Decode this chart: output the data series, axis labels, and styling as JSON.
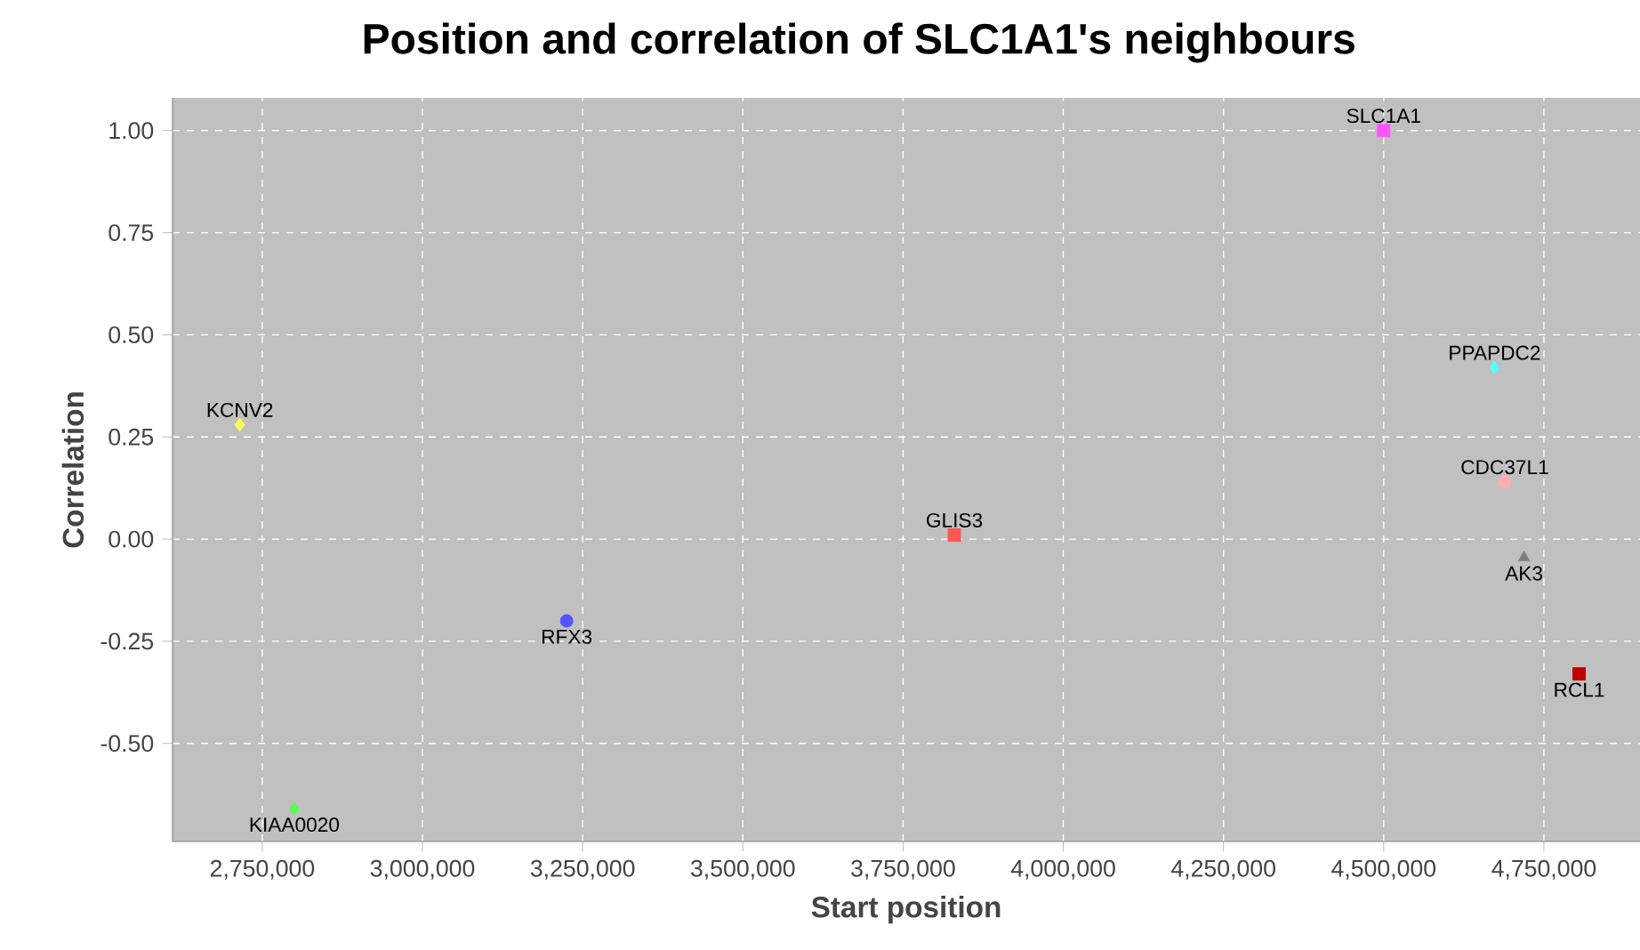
{
  "chart_data": {
    "type": "scatter",
    "title": "Position and correlation of SLC1A1's neighbours",
    "xlabel": "Start position",
    "ylabel": "Correlation",
    "grid": true,
    "xlim": [
      2610000,
      4900000
    ],
    "ylim": [
      -0.74,
      1.08
    ],
    "xticks": [
      {
        "value": 2750000,
        "label": "2,750,000"
      },
      {
        "value": 3000000,
        "label": "3,000,000"
      },
      {
        "value": 3250000,
        "label": "3,250,000"
      },
      {
        "value": 3500000,
        "label": "3,500,000"
      },
      {
        "value": 3750000,
        "label": "3,750,000"
      },
      {
        "value": 4000000,
        "label": "4,000,000"
      },
      {
        "value": 4250000,
        "label": "4,250,000"
      },
      {
        "value": 4500000,
        "label": "4,500,000"
      },
      {
        "value": 4750000,
        "label": "4,750,000"
      }
    ],
    "yticks": [
      {
        "value": -0.5,
        "label": "-0.50"
      },
      {
        "value": -0.25,
        "label": "-0.25"
      },
      {
        "value": 0,
        "label": "0.00"
      },
      {
        "value": 0.25,
        "label": "0.25"
      },
      {
        "value": 0.5,
        "label": "0.50"
      },
      {
        "value": 0.75,
        "label": "0.75"
      },
      {
        "value": 1,
        "label": "1.00"
      }
    ],
    "series": [
      {
        "name": "KCNV2",
        "color": "#ffff55",
        "marker": "diamond",
        "x": [
          2715000
        ],
        "values": [
          0.28
        ]
      },
      {
        "name": "KIAA0020",
        "color": "#55ff55",
        "marker": "diamond",
        "x": [
          2800000
        ],
        "values": [
          -0.66
        ]
      },
      {
        "name": "RFX3",
        "color": "#5555ff",
        "marker": "circle",
        "x": [
          3225000
        ],
        "values": [
          -0.2
        ]
      },
      {
        "name": "GLIS3",
        "color": "#ff5555",
        "marker": "square",
        "x": [
          3830000
        ],
        "values": [
          0.01
        ]
      },
      {
        "name": "SLC1A1",
        "color": "#ff55ff",
        "marker": "square",
        "x": [
          4500000
        ],
        "values": [
          1.0
        ]
      },
      {
        "name": "PPAPDC2",
        "color": "#55ffff",
        "marker": "diamond",
        "x": [
          4673000
        ],
        "values": [
          0.42
        ]
      },
      {
        "name": "CDC37L1",
        "color": "#ffafaf",
        "marker": "circle",
        "x": [
          4689000
        ],
        "values": [
          0.14
        ]
      },
      {
        "name": "AK3",
        "color": "#808080",
        "marker": "triangle",
        "x": [
          4719000
        ],
        "values": [
          -0.045
        ]
      },
      {
        "name": "RCL1",
        "color": "#c00000",
        "marker": "square",
        "x": [
          4805000
        ],
        "values": [
          -0.33
        ]
      }
    ]
  }
}
